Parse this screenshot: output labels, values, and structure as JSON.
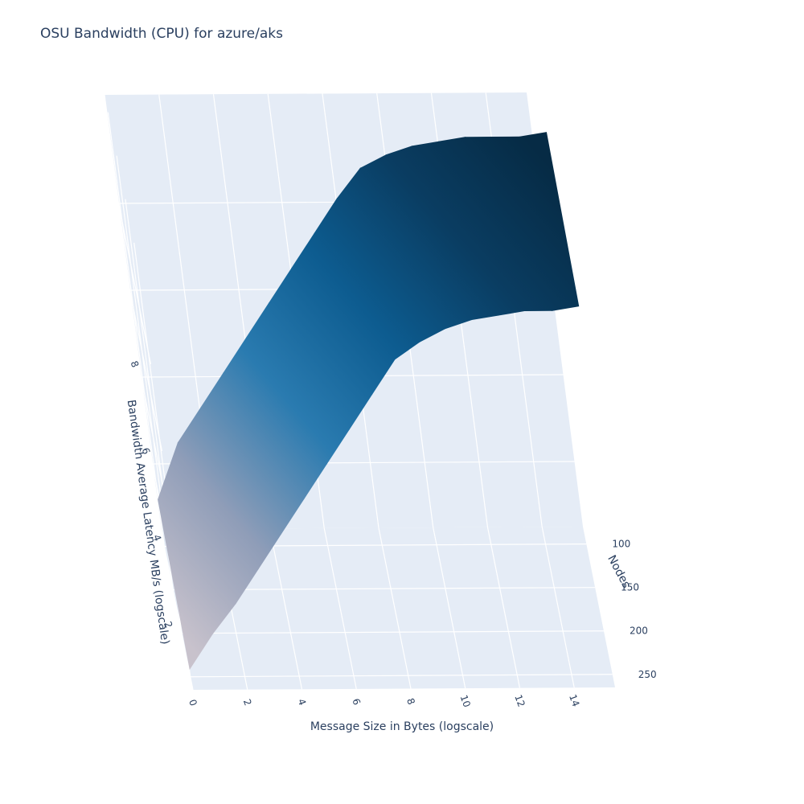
{
  "chart_data": {
    "type": "surface",
    "title": "OSU Bandwidth (CPU) for azure/aks",
    "x_axis": {
      "title": "Message Size in Bytes (logscale)",
      "ticks": [
        0,
        2,
        4,
        6,
        8,
        10,
        12,
        14
      ],
      "range": [
        0,
        15.5
      ]
    },
    "y_axis": {
      "title": "Nodes",
      "ticks": [
        100,
        150,
        200,
        250
      ],
      "range": [
        80,
        265
      ]
    },
    "z_axis": {
      "title": "Bandwidth Average Latency MB/s (logscale)",
      "ticks": [
        2,
        4,
        6,
        8
      ],
      "range": [
        0.5,
        10.5
      ]
    },
    "colorscale": [
      "#c8c2cc",
      "#8f9db8",
      "#2a7bb0",
      "#0d5c90",
      "#0a3d62",
      "#062b45"
    ],
    "surface": {
      "x": [
        0,
        1,
        2,
        3,
        4,
        5,
        6,
        7,
        8,
        9,
        10,
        11,
        12,
        13,
        14,
        15,
        16
      ],
      "nodes": [
        96,
        256
      ],
      "z_at_96": [
        1.5,
        2.8,
        3.6,
        4.4,
        5.2,
        6.0,
        6.8,
        7.6,
        8.4,
        9.1,
        9.4,
        9.6,
        9.7,
        9.8,
        9.8,
        9.8,
        9.9
      ],
      "z_at_256": [
        0.8,
        1.6,
        2.3,
        3.1,
        3.9,
        4.7,
        5.5,
        6.3,
        7.1,
        7.9,
        8.3,
        8.6,
        8.8,
        8.9,
        9.0,
        9.0,
        9.1
      ]
    }
  }
}
